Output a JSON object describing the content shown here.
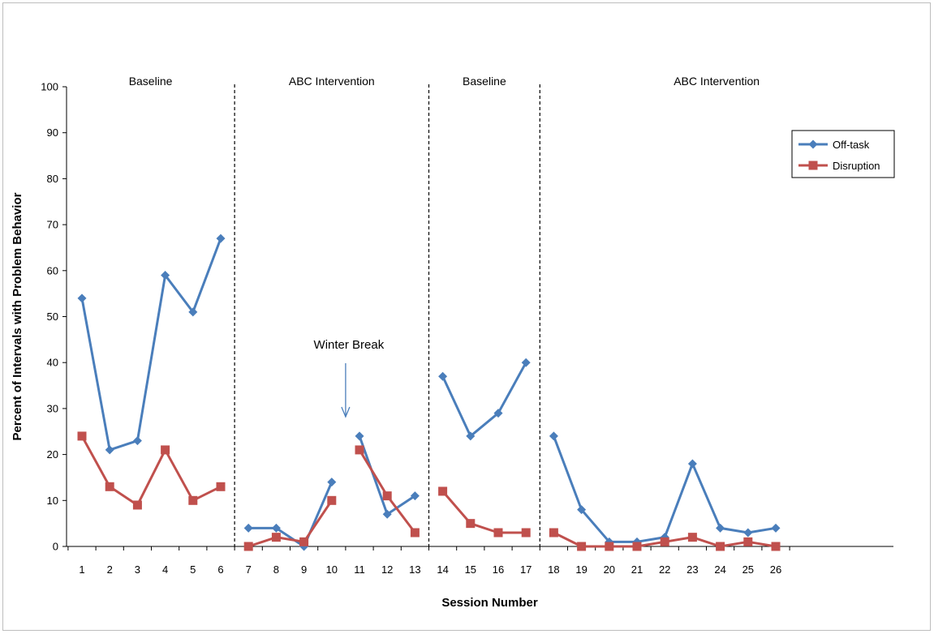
{
  "chart_data": {
    "type": "line",
    "xlabel": "Session Number",
    "ylabel": "Percent of Intervals with Problem Behavior",
    "ylim": [
      0,
      100
    ],
    "yticks": [
      0,
      10,
      20,
      30,
      40,
      50,
      60,
      70,
      80,
      90,
      100
    ],
    "grid": false,
    "legend_position": "top-right",
    "x_tick_labels": [
      "1",
      "2",
      "3",
      "4",
      "5",
      "6",
      "7",
      "8",
      "9",
      "10",
      "11",
      "12",
      "13",
      "14",
      "15",
      "16",
      "17",
      "18",
      "19",
      "20",
      "21",
      "22",
      "23",
      "24",
      "25",
      "26"
    ],
    "phases": [
      {
        "label": "Baseline",
        "sessions": [
          1,
          2,
          3,
          4,
          5,
          6
        ]
      },
      {
        "label": "ABC Intervention",
        "sessions": [
          7,
          8,
          9,
          10,
          11,
          12,
          13
        ]
      },
      {
        "label": "Baseline",
        "sessions": [
          14,
          15,
          16,
          17
        ]
      },
      {
        "label": "ABC Intervention",
        "sessions": [
          18,
          19,
          20,
          21,
          22,
          23,
          24,
          25,
          26
        ]
      }
    ],
    "annotation": {
      "text": "Winter Break",
      "between_sessions": [
        10,
        11
      ]
    },
    "series": [
      {
        "name": "Off-task",
        "color": "#4a7ebb",
        "marker": "diamond",
        "segments": [
          {
            "x": [
              1,
              2,
              3,
              4,
              5,
              6
            ],
            "y": [
              54,
              21,
              23,
              59,
              51,
              67
            ]
          },
          {
            "x": [
              7,
              8,
              9,
              10
            ],
            "y": [
              4,
              4,
              0,
              14
            ]
          },
          {
            "x": [
              11,
              12,
              13
            ],
            "y": [
              24,
              7,
              11
            ]
          },
          {
            "x": [
              14,
              15,
              16,
              17
            ],
            "y": [
              37,
              24,
              29,
              40
            ]
          },
          {
            "x": [
              18,
              19,
              20,
              21,
              22,
              23,
              24,
              25,
              26
            ],
            "y": [
              24,
              8,
              1,
              1,
              2,
              18,
              4,
              3,
              4
            ]
          }
        ]
      },
      {
        "name": "Disruption",
        "color": "#c0504d",
        "marker": "square",
        "segments": [
          {
            "x": [
              1,
              2,
              3,
              4,
              5,
              6
            ],
            "y": [
              24,
              13,
              9,
              21,
              10,
              13
            ]
          },
          {
            "x": [
              7,
              8,
              9,
              10
            ],
            "y": [
              0,
              2,
              1,
              10
            ]
          },
          {
            "x": [
              11,
              12,
              13
            ],
            "y": [
              21,
              11,
              3
            ]
          },
          {
            "x": [
              14,
              15,
              16,
              17
            ],
            "y": [
              12,
              5,
              3,
              3
            ]
          },
          {
            "x": [
              18,
              19,
              20,
              21,
              22,
              23,
              24,
              25,
              26
            ],
            "y": [
              3,
              0,
              0,
              0,
              1,
              2,
              0,
              1,
              0
            ]
          }
        ]
      }
    ]
  }
}
